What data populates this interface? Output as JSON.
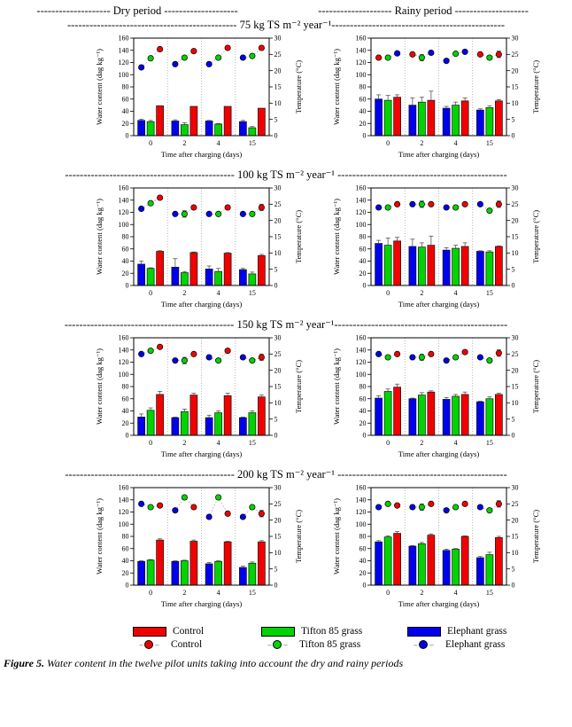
{
  "page": {
    "period_headers": {
      "dry": "-------------------- Dry period --------------------",
      "rainy": "-------------------- Rainy period --------------------"
    },
    "row_headers": [
      "---------------------------------------------- 75 kg TS m⁻² year⁻¹-----------------------------------------------",
      "---------------------------------------------- 100 kg TS m⁻² year⁻¹ ----------------------------------------------",
      "---------------------------------------------- 150 kg TS m⁻² year⁻¹-----------------------------------------------",
      "---------------------------------------------- 200 kg TS m⁻² year⁻¹ ----------------------------------------------"
    ],
    "caption_prefix": "Figure 5.",
    "caption_text": " Water content in the twelve pilot units taking into account the dry and rainy periods"
  },
  "colors": {
    "r": "#f20000",
    "g": "#00d400",
    "b": "#0000ee"
  },
  "legend": {
    "bars": [
      {
        "label": "Control",
        "color": "#f20000"
      },
      {
        "label": "Tifton 85 grass",
        "color": "#00d400"
      },
      {
        "label": "Elephant grass",
        "color": "#0000ee"
      }
    ],
    "points": [
      {
        "label": "Control",
        "color": "#f20000"
      },
      {
        "label": "Tifton 85 grass",
        "color": "#00d400"
      },
      {
        "label": "Elephant grass",
        "color": "#0000ee"
      }
    ]
  },
  "axes": {
    "ylabel_left": "Water content (dag kg⁻¹)",
    "ylabel_right": "Temperature (°C)",
    "xlabel": "Time after charging (days)",
    "ylim_left": [
      0,
      160
    ],
    "ytick_left": 20,
    "ylim_right": [
      0,
      30
    ],
    "ytick_right": 5,
    "categories": [
      "0",
      "2",
      "4",
      "15"
    ],
    "grid": "off",
    "bar_series_order": [
      "Elephant grass (blue)",
      "Tifton 85 grass (green)",
      "Control (red)"
    ]
  },
  "chart_data": [
    {
      "id": "dry-75",
      "type": "bar",
      "period": "Dry period",
      "loading": "75 kg TS m⁻² year⁻¹",
      "bars": [
        [
          {
            "c": "b",
            "v": 25,
            "e": 2
          },
          {
            "c": "g",
            "v": 23,
            "e": 2
          },
          {
            "c": "r",
            "v": 49,
            "e": 0
          }
        ],
        [
          {
            "c": "b",
            "v": 24,
            "e": 2
          },
          {
            "c": "g",
            "v": 18,
            "e": 3
          },
          {
            "c": "r",
            "v": 48,
            "e": 0
          }
        ],
        [
          {
            "c": "b",
            "v": 24,
            "e": 1
          },
          {
            "c": "g",
            "v": 19,
            "e": 1
          },
          {
            "c": "r",
            "v": 48,
            "e": 0
          }
        ],
        [
          {
            "c": "b",
            "v": 23,
            "e": 2
          },
          {
            "c": "g",
            "v": 13,
            "e": 2
          },
          {
            "c": "r",
            "v": 45,
            "e": 0
          }
        ]
      ],
      "temps": [
        [
          {
            "c": "b",
            "v": 21
          },
          {
            "c": "g",
            "v": 23.8
          },
          {
            "c": "r",
            "v": 26.6
          }
        ],
        [
          {
            "c": "b",
            "v": 22
          },
          {
            "c": "g",
            "v": 24
          },
          {
            "c": "r",
            "v": 26
          }
        ],
        [
          {
            "c": "b",
            "v": 22
          },
          {
            "c": "g",
            "v": 24
          },
          {
            "c": "r",
            "v": 27
          }
        ],
        [
          {
            "c": "b",
            "v": 24
          },
          {
            "c": "g",
            "v": 24.5
          },
          {
            "c": "r",
            "v": 27
          }
        ]
      ]
    },
    {
      "id": "rainy-75",
      "type": "bar",
      "period": "Rainy period",
      "loading": "75 kg TS m⁻² year⁻¹",
      "bars": [
        [
          {
            "c": "b",
            "v": 60,
            "e": 7
          },
          {
            "c": "g",
            "v": 58,
            "e": 8
          },
          {
            "c": "r",
            "v": 63,
            "e": 4
          }
        ],
        [
          {
            "c": "b",
            "v": 50,
            "e": 12
          },
          {
            "c": "g",
            "v": 55,
            "e": 8
          },
          {
            "c": "r",
            "v": 58,
            "e": 15
          }
        ],
        [
          {
            "c": "b",
            "v": 45,
            "e": 3
          },
          {
            "c": "g",
            "v": 50,
            "e": 5
          },
          {
            "c": "r",
            "v": 57,
            "e": 5
          }
        ],
        [
          {
            "c": "b",
            "v": 42,
            "e": 2
          },
          {
            "c": "g",
            "v": 46,
            "e": 3
          },
          {
            "c": "r",
            "v": 57,
            "e": 2
          }
        ]
      ],
      "temps": [
        [
          {
            "c": "r",
            "v": 24
          },
          {
            "c": "g",
            "v": 24
          },
          {
            "c": "b",
            "v": 25.3
          }
        ],
        [
          {
            "c": "r",
            "v": 25
          },
          {
            "c": "g",
            "v": 24,
            "e": 1
          },
          {
            "c": "b",
            "v": 25.5
          }
        ],
        [
          {
            "c": "b",
            "v": 23
          },
          {
            "c": "g",
            "v": 25.2
          },
          {
            "c": "b",
            "v": 25.8
          }
        ],
        [
          {
            "c": "r",
            "v": 25
          },
          {
            "c": "g",
            "v": 24
          },
          {
            "c": "r",
            "v": 25,
            "e": 1
          }
        ]
      ]
    },
    {
      "id": "dry-100",
      "type": "bar",
      "period": "Dry period",
      "loading": "100 kg TS m⁻² year⁻¹",
      "bars": [
        [
          {
            "c": "b",
            "v": 35,
            "e": 5
          },
          {
            "c": "g",
            "v": 28,
            "e": 1
          },
          {
            "c": "r",
            "v": 56,
            "e": 1
          }
        ],
        [
          {
            "c": "b",
            "v": 30,
            "e": 14
          },
          {
            "c": "g",
            "v": 21,
            "e": 2
          },
          {
            "c": "r",
            "v": 54,
            "e": 1
          }
        ],
        [
          {
            "c": "b",
            "v": 27,
            "e": 5
          },
          {
            "c": "g",
            "v": 23,
            "e": 5
          },
          {
            "c": "r",
            "v": 53,
            "e": 1
          }
        ],
        [
          {
            "c": "b",
            "v": 26,
            "e": 2
          },
          {
            "c": "g",
            "v": 19,
            "e": 3
          },
          {
            "c": "r",
            "v": 49,
            "e": 2
          }
        ]
      ],
      "temps": [
        [
          {
            "c": "b",
            "v": 23.6
          },
          {
            "c": "g",
            "v": 25.3
          },
          {
            "c": "r",
            "v": 27
          }
        ],
        [
          {
            "c": "b",
            "v": 22
          },
          {
            "c": "g",
            "v": 22,
            "e": 1
          },
          {
            "c": "r",
            "v": 24
          }
        ],
        [
          {
            "c": "b",
            "v": 22
          },
          {
            "c": "g",
            "v": 22
          },
          {
            "c": "r",
            "v": 24
          }
        ],
        [
          {
            "c": "b",
            "v": 22
          },
          {
            "c": "g",
            "v": 22
          },
          {
            "c": "r",
            "v": 24,
            "e": 1
          }
        ]
      ]
    },
    {
      "id": "rainy-100",
      "type": "bar",
      "period": "Rainy period",
      "loading": "100 kg TS m⁻² year⁻¹",
      "bars": [
        [
          {
            "c": "b",
            "v": 69,
            "e": 5
          },
          {
            "c": "g",
            "v": 66,
            "e": 12
          },
          {
            "c": "r",
            "v": 73,
            "e": 6
          }
        ],
        [
          {
            "c": "b",
            "v": 64,
            "e": 12
          },
          {
            "c": "g",
            "v": 63,
            "e": 7
          },
          {
            "c": "r",
            "v": 66,
            "e": 15
          }
        ],
        [
          {
            "c": "b",
            "v": 58,
            "e": 4
          },
          {
            "c": "g",
            "v": 61,
            "e": 5
          },
          {
            "c": "r",
            "v": 64,
            "e": 6
          }
        ],
        [
          {
            "c": "b",
            "v": 56,
            "e": 1
          },
          {
            "c": "g",
            "v": 55,
            "e": 2
          },
          {
            "c": "r",
            "v": 64,
            "e": 1
          }
        ]
      ],
      "temps": [
        [
          {
            "c": "b",
            "v": 24
          },
          {
            "c": "g",
            "v": 24
          },
          {
            "c": "r",
            "v": 25
          }
        ],
        [
          {
            "c": "b",
            "v": 25
          },
          {
            "c": "g",
            "v": 25,
            "e": 1
          },
          {
            "c": "r",
            "v": 25
          }
        ],
        [
          {
            "c": "b",
            "v": 24
          },
          {
            "c": "g",
            "v": 24
          },
          {
            "c": "r",
            "v": 25
          }
        ],
        [
          {
            "c": "b",
            "v": 25
          },
          {
            "c": "g",
            "v": 23
          },
          {
            "c": "r",
            "v": 25,
            "e": 1
          }
        ]
      ]
    },
    {
      "id": "dry-150",
      "type": "bar",
      "period": "Dry period",
      "loading": "150 kg TS m⁻² year⁻¹",
      "bars": [
        [
          {
            "c": "b",
            "v": 30,
            "e": 5
          },
          {
            "c": "g",
            "v": 41,
            "e": 4
          },
          {
            "c": "r",
            "v": 67,
            "e": 5
          }
        ],
        [
          {
            "c": "b",
            "v": 29,
            "e": 1
          },
          {
            "c": "g",
            "v": 39,
            "e": 4
          },
          {
            "c": "r",
            "v": 66,
            "e": 3
          }
        ],
        [
          {
            "c": "b",
            "v": 29,
            "e": 4
          },
          {
            "c": "g",
            "v": 37,
            "e": 3
          },
          {
            "c": "r",
            "v": 65,
            "e": 4
          }
        ],
        [
          {
            "c": "b",
            "v": 29,
            "e": 1
          },
          {
            "c": "g",
            "v": 37,
            "e": 3
          },
          {
            "c": "r",
            "v": 63,
            "e": 3
          }
        ]
      ],
      "temps": [
        [
          {
            "c": "b",
            "v": 25
          },
          {
            "c": "g",
            "v": 26
          },
          {
            "c": "r",
            "v": 27.2
          }
        ],
        [
          {
            "c": "b",
            "v": 23
          },
          {
            "c": "g",
            "v": 23,
            "e": 1
          },
          {
            "c": "r",
            "v": 25
          }
        ],
        [
          {
            "c": "b",
            "v": 24
          },
          {
            "c": "g",
            "v": 23
          },
          {
            "c": "r",
            "v": 26
          }
        ],
        [
          {
            "c": "b",
            "v": 24
          },
          {
            "c": "g",
            "v": 23
          },
          {
            "c": "r",
            "v": 24,
            "e": 1
          }
        ]
      ]
    },
    {
      "id": "rainy-150",
      "type": "bar",
      "period": "Rainy period",
      "loading": "150 kg TS m⁻² year⁻¹",
      "bars": [
        [
          {
            "c": "b",
            "v": 61,
            "e": 4
          },
          {
            "c": "g",
            "v": 72,
            "e": 4
          },
          {
            "c": "r",
            "v": 79,
            "e": 5
          }
        ],
        [
          {
            "c": "b",
            "v": 60,
            "e": 1
          },
          {
            "c": "g",
            "v": 66,
            "e": 4
          },
          {
            "c": "r",
            "v": 71,
            "e": 2
          }
        ],
        [
          {
            "c": "b",
            "v": 59,
            "e": 3
          },
          {
            "c": "g",
            "v": 64,
            "e": 3
          },
          {
            "c": "r",
            "v": 67,
            "e": 4
          }
        ],
        [
          {
            "c": "b",
            "v": 55,
            "e": 1
          },
          {
            "c": "g",
            "v": 60,
            "e": 3
          },
          {
            "c": "r",
            "v": 67,
            "e": 2
          }
        ]
      ],
      "temps": [
        [
          {
            "c": "b",
            "v": 25
          },
          {
            "c": "g",
            "v": 24
          },
          {
            "c": "r",
            "v": 25
          }
        ],
        [
          {
            "c": "b",
            "v": 24
          },
          {
            "c": "g",
            "v": 24,
            "e": 1
          },
          {
            "c": "r",
            "v": 25
          }
        ],
        [
          {
            "c": "b",
            "v": 23
          },
          {
            "c": "g",
            "v": 24
          },
          {
            "c": "r",
            "v": 25.6
          }
        ],
        [
          {
            "c": "b",
            "v": 24
          },
          {
            "c": "g",
            "v": 23
          },
          {
            "c": "r",
            "v": 25.3,
            "e": 1
          }
        ]
      ]
    },
    {
      "id": "dry-200",
      "type": "bar",
      "period": "Dry period",
      "loading": "200 kg TS m⁻² year⁻¹",
      "bars": [
        [
          {
            "c": "b",
            "v": 39,
            "e": 1
          },
          {
            "c": "g",
            "v": 41,
            "e": 1
          },
          {
            "c": "r",
            "v": 74,
            "e": 2
          }
        ],
        [
          {
            "c": "b",
            "v": 39,
            "e": 1
          },
          {
            "c": "g",
            "v": 40,
            "e": 1
          },
          {
            "c": "r",
            "v": 72,
            "e": 2
          }
        ],
        [
          {
            "c": "b",
            "v": 35,
            "e": 2
          },
          {
            "c": "g",
            "v": 39,
            "e": 1
          },
          {
            "c": "r",
            "v": 71,
            "e": 1
          }
        ],
        [
          {
            "c": "b",
            "v": 29,
            "e": 2
          },
          {
            "c": "g",
            "v": 36,
            "e": 2
          },
          {
            "c": "r",
            "v": 71,
            "e": 2
          }
        ]
      ],
      "temps": [
        [
          {
            "c": "b",
            "v": 25
          },
          {
            "c": "g",
            "v": 24
          },
          {
            "c": "r",
            "v": 24.5
          }
        ],
        [
          {
            "c": "b",
            "v": 23
          },
          {
            "c": "g",
            "v": 27
          },
          {
            "c": "r",
            "v": 24
          }
        ],
        [
          {
            "c": "b",
            "v": 21
          },
          {
            "c": "g",
            "v": 27
          },
          {
            "c": "r",
            "v": 22
          }
        ],
        [
          {
            "c": "b",
            "v": 21
          },
          {
            "c": "g",
            "v": 24
          },
          {
            "c": "r",
            "v": 22,
            "e": 1
          }
        ]
      ]
    },
    {
      "id": "rainy-200",
      "type": "bar",
      "period": "Rainy period",
      "loading": "200 kg TS m⁻² year⁻¹",
      "bars": [
        [
          {
            "c": "b",
            "v": 71,
            "e": 2
          },
          {
            "c": "g",
            "v": 79,
            "e": 2
          },
          {
            "c": "r",
            "v": 85,
            "e": 3
          }
        ],
        [
          {
            "c": "b",
            "v": 64,
            "e": 1
          },
          {
            "c": "g",
            "v": 68,
            "e": 2
          },
          {
            "c": "r",
            "v": 82,
            "e": 2
          }
        ],
        [
          {
            "c": "b",
            "v": 57,
            "e": 2
          },
          {
            "c": "g",
            "v": 59,
            "e": 1
          },
          {
            "c": "r",
            "v": 80,
            "e": 1
          }
        ],
        [
          {
            "c": "b",
            "v": 45,
            "e": 2
          },
          {
            "c": "g",
            "v": 50,
            "e": 4
          },
          {
            "c": "r",
            "v": 78,
            "e": 2
          }
        ]
      ],
      "temps": [
        [
          {
            "c": "b",
            "v": 24
          },
          {
            "c": "g",
            "v": 25
          },
          {
            "c": "r",
            "v": 24.5
          }
        ],
        [
          {
            "c": "b",
            "v": 24
          },
          {
            "c": "g",
            "v": 24,
            "e": 1
          },
          {
            "c": "r",
            "v": 25
          }
        ],
        [
          {
            "c": "b",
            "v": 23
          },
          {
            "c": "g",
            "v": 24
          },
          {
            "c": "r",
            "v": 25
          }
        ],
        [
          {
            "c": "b",
            "v": 24
          },
          {
            "c": "g",
            "v": 23
          },
          {
            "c": "r",
            "v": 25,
            "e": 1
          }
        ]
      ]
    }
  ]
}
